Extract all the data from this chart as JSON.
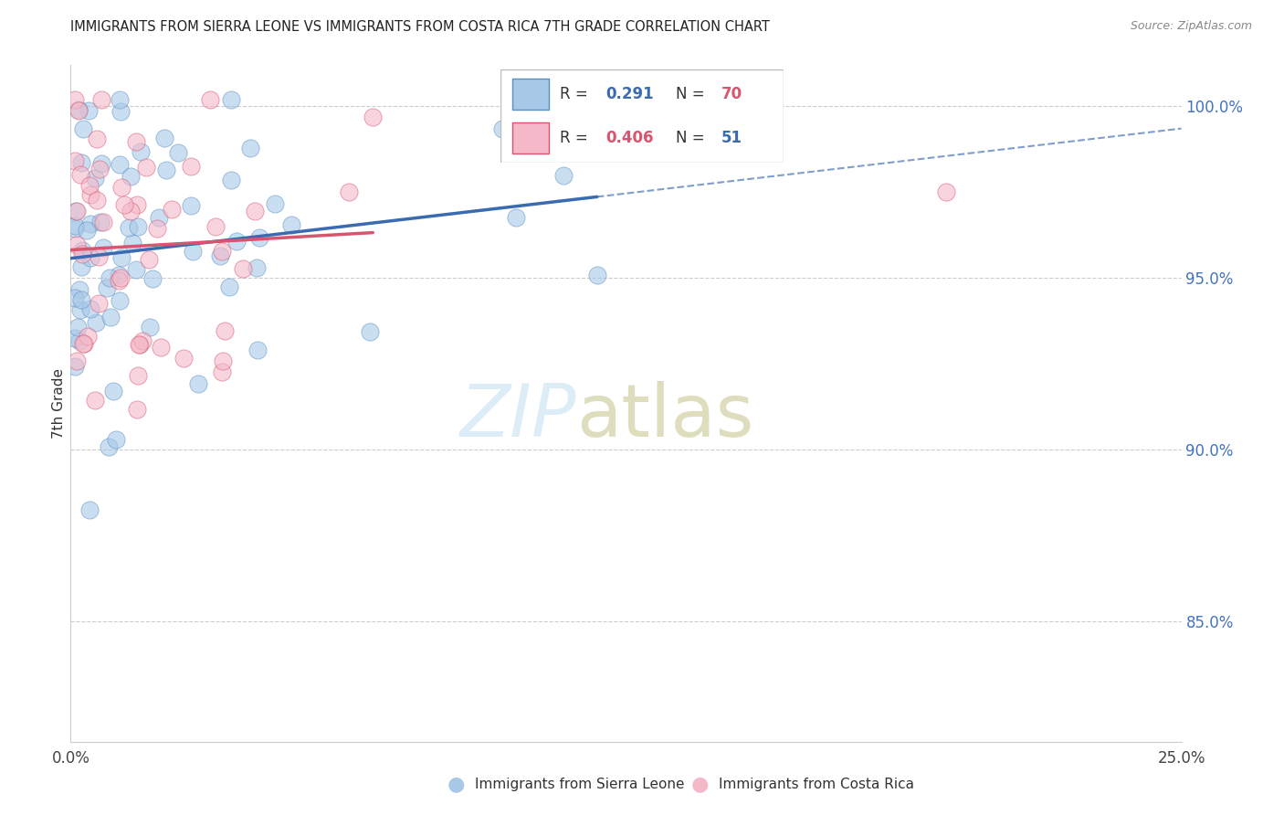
{
  "title": "IMMIGRANTS FROM SIERRA LEONE VS IMMIGRANTS FROM COSTA RICA 7TH GRADE CORRELATION CHART",
  "source": "Source: ZipAtlas.com",
  "ylabel": "7th Grade",
  "ylabel_right_labels": [
    "100.0%",
    "95.0%",
    "90.0%",
    "85.0%"
  ],
  "ylabel_right_values": [
    1.0,
    0.95,
    0.9,
    0.85
  ],
  "xmin": 0.0,
  "xmax": 0.25,
  "ymin": 0.815,
  "ymax": 1.012,
  "trendline1_color": "#3a6ab0",
  "trendline2_color": "#d9546e",
  "sierra_leone_color": "#a8c8e8",
  "sierra_leone_edge": "#5a8fc0",
  "costa_rica_color": "#f4b8c8",
  "costa_rica_edge": "#d9546e",
  "legend_label1": "Immigrants from Sierra Leone",
  "legend_label2": "Immigrants from Costa Rica",
  "legend_r1": "R =  0.291",
  "legend_n1": "N = 70",
  "legend_r2": "R =  0.406",
  "legend_n2": "N = 51",
  "r1_color": "#3a6ab0",
  "n1_color": "#d9546e",
  "r2_color": "#d9546e",
  "n2_color": "#3a6ab0",
  "watermark_color": "#d8eaf7"
}
